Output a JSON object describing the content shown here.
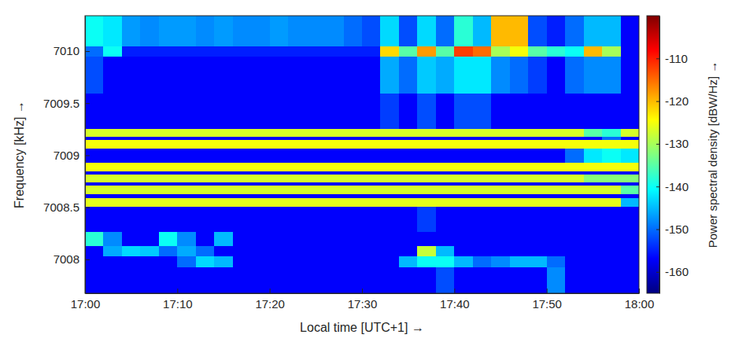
{
  "chart_data": {
    "type": "heatmap",
    "x_label": "Local time [UTC+1] →",
    "y_label": "Frequency  [kHz] →",
    "colorbar_label": "Power spectral density  [dBW/Hz] →",
    "xlim": [
      1020,
      1080
    ],
    "ylim": [
      7007.675,
      7010.34
    ],
    "xticks": [
      {
        "value": 1020,
        "label": "17:00"
      },
      {
        "value": 1030,
        "label": "17:10"
      },
      {
        "value": 1040,
        "label": "17:20"
      },
      {
        "value": 1050,
        "label": "17:30"
      },
      {
        "value": 1060,
        "label": "17:40"
      },
      {
        "value": 1070,
        "label": "17:50"
      },
      {
        "value": 1080,
        "label": "18:00"
      }
    ],
    "yticks": [
      7008,
      7008.5,
      7009,
      7009.5,
      7010
    ],
    "colorbar_lim": [
      -165,
      -100
    ],
    "colorbar_ticks": [
      -160,
      -150,
      -140,
      -130,
      -120,
      -110
    ],
    "x_edges": [
      1020,
      1022,
      1024,
      1026,
      1028,
      1030,
      1032,
      1034,
      1036,
      1038,
      1040,
      1042,
      1044,
      1046,
      1048,
      1050,
      1052,
      1054,
      1056,
      1058,
      1060,
      1062,
      1064,
      1066,
      1068,
      1070,
      1072,
      1074,
      1076,
      1078,
      1080
    ],
    "y_edges": [
      7007.675,
      7007.93,
      7008.03,
      7008.13,
      7008.27,
      7008.51,
      7008.59,
      7008.63,
      7008.71,
      7008.74,
      7008.82,
      7008.85,
      7008.93,
      7009.07,
      7009.15,
      7009.18,
      7009.26,
      7009.6,
      7009.95,
      7010.05,
      7010.34
    ],
    "z": [
      [
        -157,
        -157,
        -157,
        -157,
        -157,
        -157,
        -157,
        -157,
        -157,
        -157,
        -157,
        -157,
        -157,
        -157,
        -157,
        -157,
        -157,
        -157,
        -157,
        -152,
        -157,
        -157,
        -157,
        -157,
        -157,
        -148,
        -157,
        -157,
        -157,
        -157
      ],
      [
        -157,
        -157,
        -157,
        -157,
        -157,
        -150,
        -143,
        -145,
        -157,
        -157,
        -157,
        -157,
        -157,
        -157,
        -157,
        -157,
        -157,
        -145,
        -140,
        -140,
        -145,
        -150,
        -148,
        -145,
        -145,
        -150,
        -157,
        -157,
        -157,
        -157
      ],
      [
        -157,
        -146,
        -143,
        -144,
        -150,
        -146,
        -150,
        -157,
        -157,
        -157,
        -157,
        -157,
        -157,
        -157,
        -157,
        -157,
        -157,
        -157,
        -128,
        -145,
        -157,
        -157,
        -157,
        -157,
        -157,
        -157,
        -157,
        -157,
        -157,
        -157
      ],
      [
        -138,
        -148,
        -157,
        -157,
        -140,
        -148,
        -157,
        -145,
        -157,
        -157,
        -157,
        -157,
        -157,
        -157,
        -157,
        -157,
        -157,
        -157,
        -157,
        -157,
        -157,
        -157,
        -157,
        -157,
        -157,
        -157,
        -157,
        -157,
        -157,
        -157
      ],
      [
        -157,
        -157,
        -157,
        -157,
        -157,
        -157,
        -157,
        -157,
        -157,
        -157,
        -157,
        -157,
        -157,
        -157,
        -157,
        -157,
        -157,
        -157,
        -153,
        -157,
        -157,
        -157,
        -157,
        -157,
        -157,
        -157,
        -157,
        -157,
        -157,
        -157
      ],
      [
        -126,
        -126,
        -126,
        -126,
        -126,
        -126,
        -126,
        -126,
        -126,
        -126,
        -126,
        -126,
        -126,
        -126,
        -126,
        -126,
        -126,
        -126,
        -126,
        -126,
        -126,
        -126,
        -126,
        -126,
        -126,
        -126,
        -126,
        -126,
        -126,
        -145
      ],
      [
        -157,
        -157,
        -157,
        -157,
        -157,
        -157,
        -157,
        -157,
        -157,
        -157,
        -157,
        -157,
        -157,
        -157,
        -157,
        -157,
        -157,
        -157,
        -157,
        -157,
        -157,
        -157,
        -157,
        -157,
        -157,
        -157,
        -157,
        -157,
        -157,
        -157
      ],
      [
        -127,
        -127,
        -127,
        -127,
        -127,
        -127,
        -127,
        -127,
        -127,
        -127,
        -127,
        -127,
        -127,
        -127,
        -127,
        -127,
        -127,
        -127,
        -127,
        -127,
        -127,
        -127,
        -127,
        -127,
        -127,
        -127,
        -127,
        -127,
        -127,
        -135
      ],
      [
        -157,
        -157,
        -157,
        -157,
        -157,
        -157,
        -157,
        -157,
        -157,
        -157,
        -157,
        -157,
        -157,
        -157,
        -157,
        -157,
        -157,
        -157,
        -157,
        -157,
        -157,
        -157,
        -157,
        -157,
        -157,
        -157,
        -157,
        -157,
        -157,
        -157
      ],
      [
        -127,
        -127,
        -127,
        -127,
        -127,
        -127,
        -127,
        -127,
        -127,
        -127,
        -127,
        -127,
        -127,
        -127,
        -127,
        -127,
        -127,
        -127,
        -127,
        -127,
        -127,
        -127,
        -127,
        -127,
        -127,
        -127,
        -127,
        -132,
        -132,
        -132
      ],
      [
        -157,
        -157,
        -157,
        -157,
        -157,
        -157,
        -157,
        -157,
        -157,
        -157,
        -157,
        -157,
        -157,
        -157,
        -157,
        -157,
        -157,
        -157,
        -157,
        -157,
        -157,
        -157,
        -157,
        -157,
        -157,
        -157,
        -157,
        -157,
        -157,
        -157
      ],
      [
        -125,
        -125,
        -125,
        -125,
        -125,
        -125,
        -125,
        -125,
        -125,
        -125,
        -125,
        -125,
        -125,
        -125,
        -125,
        -125,
        -125,
        -125,
        -125,
        -125,
        -125,
        -125,
        -125,
        -125,
        -125,
        -125,
        -125,
        -125,
        -125,
        -125
      ],
      [
        -157,
        -157,
        -157,
        -157,
        -157,
        -157,
        -157,
        -157,
        -157,
        -157,
        -157,
        -157,
        -157,
        -157,
        -157,
        -157,
        -157,
        -157,
        -157,
        -157,
        -157,
        -157,
        -157,
        -157,
        -157,
        -157,
        -150,
        -142,
        -140,
        -142
      ],
      [
        -125,
        -125,
        -125,
        -125,
        -125,
        -125,
        -125,
        -125,
        -125,
        -125,
        -125,
        -125,
        -125,
        -125,
        -125,
        -125,
        -125,
        -125,
        -125,
        -125,
        -125,
        -125,
        -125,
        -125,
        -125,
        -125,
        -125,
        -125,
        -125,
        -125
      ],
      [
        -157,
        -157,
        -157,
        -157,
        -157,
        -157,
        -157,
        -157,
        -157,
        -157,
        -157,
        -157,
        -157,
        -157,
        -157,
        -157,
        -157,
        -157,
        -157,
        -157,
        -157,
        -157,
        -157,
        -157,
        -157,
        -157,
        -157,
        -157,
        -150,
        -157
      ],
      [
        -127,
        -127,
        -127,
        -127,
        -127,
        -127,
        -127,
        -127,
        -127,
        -127,
        -127,
        -127,
        -127,
        -127,
        -127,
        -127,
        -127,
        -127,
        -127,
        -127,
        -127,
        -127,
        -127,
        -127,
        -127,
        -127,
        -127,
        -135,
        -138,
        -127
      ],
      [
        -157,
        -157,
        -157,
        -157,
        -157,
        -157,
        -157,
        -157,
        -157,
        -157,
        -157,
        -157,
        -157,
        -157,
        -157,
        -157,
        -153,
        -157,
        -152,
        -157,
        -152,
        -152,
        -157,
        -157,
        -157,
        -157,
        -157,
        -157,
        -157,
        -157
      ],
      [
        -152,
        -157,
        -157,
        -157,
        -157,
        -157,
        -157,
        -157,
        -157,
        -157,
        -157,
        -157,
        -157,
        -157,
        -157,
        -157,
        -146,
        -150,
        -144,
        -146,
        -142,
        -142,
        -148,
        -150,
        -153,
        -157,
        -150,
        -148,
        -148,
        -157
      ],
      [
        -150,
        -140,
        -155,
        -155,
        -155,
        -155,
        -155,
        -155,
        -155,
        -155,
        -155,
        -155,
        -155,
        -155,
        -155,
        -155,
        -122,
        -135,
        -118,
        -135,
        -112,
        -115,
        -130,
        -125,
        -135,
        -138,
        -140,
        -120,
        -130,
        -157
      ],
      [
        -140,
        -142,
        -147,
        -148,
        -147,
        -147,
        -148,
        -147,
        -148,
        -148,
        -147,
        -148,
        -148,
        -148,
        -150,
        -152,
        -143,
        -152,
        -143,
        -150,
        -138,
        -145,
        -120,
        -120,
        -152,
        -155,
        -150,
        -145,
        -145,
        -157
      ]
    ]
  }
}
